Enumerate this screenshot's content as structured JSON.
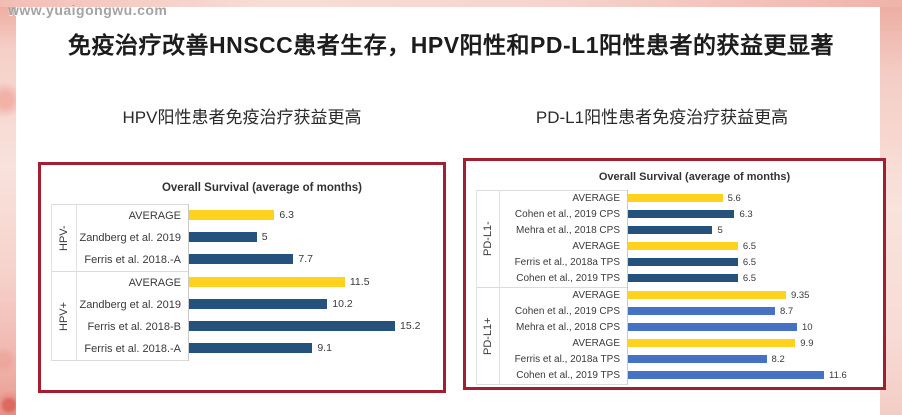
{
  "watermark": "www.yuaigongwu.com",
  "title": "免疫治疗改善HNSCC患者生存，HPV阳性和PD-L1阳性患者的获益更显著",
  "panels": [
    {
      "subtitle": "HPV阳性患者免疫治疗获益更高"
    },
    {
      "subtitle": "PD-L1阳性患者免疫治疗获益更高"
    }
  ],
  "colors": {
    "panel_border_red": "#a21f33",
    "bar_yellow": "#ffd21e",
    "bar_navy": "#25527c",
    "bar_blue": "#4472c4",
    "title_text": "#1c1c1c",
    "watermark_gray": "#a3a3a3"
  },
  "chart_data": [
    {
      "type": "bar",
      "orientation": "horizontal",
      "title": "Overall Survival (average of months)",
      "xlabel": "",
      "ylabel": "",
      "xlim": [
        0,
        18
      ],
      "grid": false,
      "legend": false,
      "groups": [
        {
          "label": "HPV-",
          "rows": [
            {
              "label": "AVERAGE",
              "value": 6.3,
              "color": "yellow"
            },
            {
              "label": "Zandberg et al. 2019",
              "value": 5,
              "color": "navy"
            },
            {
              "label": "Ferris et al. 2018.-A",
              "value": 7.7,
              "color": "navy"
            }
          ]
        },
        {
          "label": "HPV+",
          "rows": [
            {
              "label": "AVERAGE",
              "value": 11.5,
              "color": "yellow"
            },
            {
              "label": "Zandberg et al. 2019",
              "value": 10.2,
              "color": "navy"
            },
            {
              "label": "Ferris et al. 2018-B",
              "value": 15.2,
              "color": "navy"
            },
            {
              "label": "Ferris et al. 2018.-A",
              "value": 9.1,
              "color": "navy"
            }
          ]
        }
      ]
    },
    {
      "type": "bar",
      "orientation": "horizontal",
      "title": "Overall Survival (average of months)",
      "xlabel": "",
      "ylabel": "",
      "xlim": [
        0,
        14.5
      ],
      "grid": false,
      "legend": false,
      "groups": [
        {
          "label": "PD-L1-",
          "rows": [
            {
              "label": "AVERAGE",
              "value": 5.6,
              "color": "yellow"
            },
            {
              "label": "Cohen et al., 2019 CPS",
              "value": 6.3,
              "color": "navy"
            },
            {
              "label": "Mehra et al., 2018 CPS",
              "value": 5,
              "color": "navy"
            },
            {
              "label": "AVERAGE",
              "value": 6.5,
              "color": "yellow"
            },
            {
              "label": "Ferris et al., 2018a TPS",
              "value": 6.5,
              "color": "navy"
            },
            {
              "label": "Cohen et al., 2019 TPS",
              "value": 6.5,
              "color": "navy"
            }
          ]
        },
        {
          "label": "PD-L1+",
          "rows": [
            {
              "label": "AVERAGE",
              "value": 9.35,
              "color": "yellow"
            },
            {
              "label": "Cohen et al., 2019 CPS",
              "value": 8.7,
              "color": "blue"
            },
            {
              "label": "Mehra et al., 2018 CPS",
              "value": 10,
              "color": "blue"
            },
            {
              "label": "AVERAGE",
              "value": 9.9,
              "color": "yellow"
            },
            {
              "label": "Ferris et al., 2018a TPS",
              "value": 8.2,
              "color": "blue"
            },
            {
              "label": "Cohen et al., 2019 TPS",
              "value": 11.6,
              "color": "blue"
            }
          ]
        }
      ]
    }
  ]
}
